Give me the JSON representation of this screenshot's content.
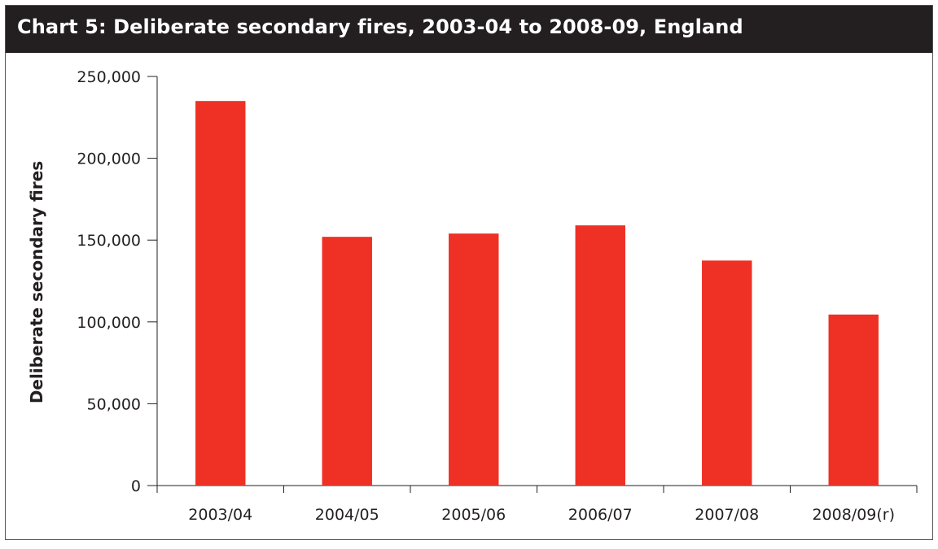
{
  "chart_data": {
    "type": "bar",
    "title": "Chart 5:   Deliberate secondary fires, 2003-04 to 2008-09, England",
    "xlabel": "",
    "ylabel": "Deliberate secondary fires",
    "categories": [
      "2003/04",
      "2004/05",
      "2005/06",
      "2006/07",
      "2007/08",
      "2008/09(r)"
    ],
    "values": [
      235000,
      152000,
      154000,
      159000,
      137500,
      104500
    ],
    "ylim": [
      0,
      250000
    ],
    "yticks": [
      0,
      50000,
      100000,
      150000,
      200000,
      250000
    ],
    "ytick_labels": [
      "0",
      "50,000",
      "100,000",
      "150,000",
      "200,000",
      "250,000"
    ],
    "grid": false,
    "legend": "none",
    "colors": {
      "bar": "#ee3124",
      "title_bg": "#231f20",
      "axis": "#231f20"
    }
  }
}
